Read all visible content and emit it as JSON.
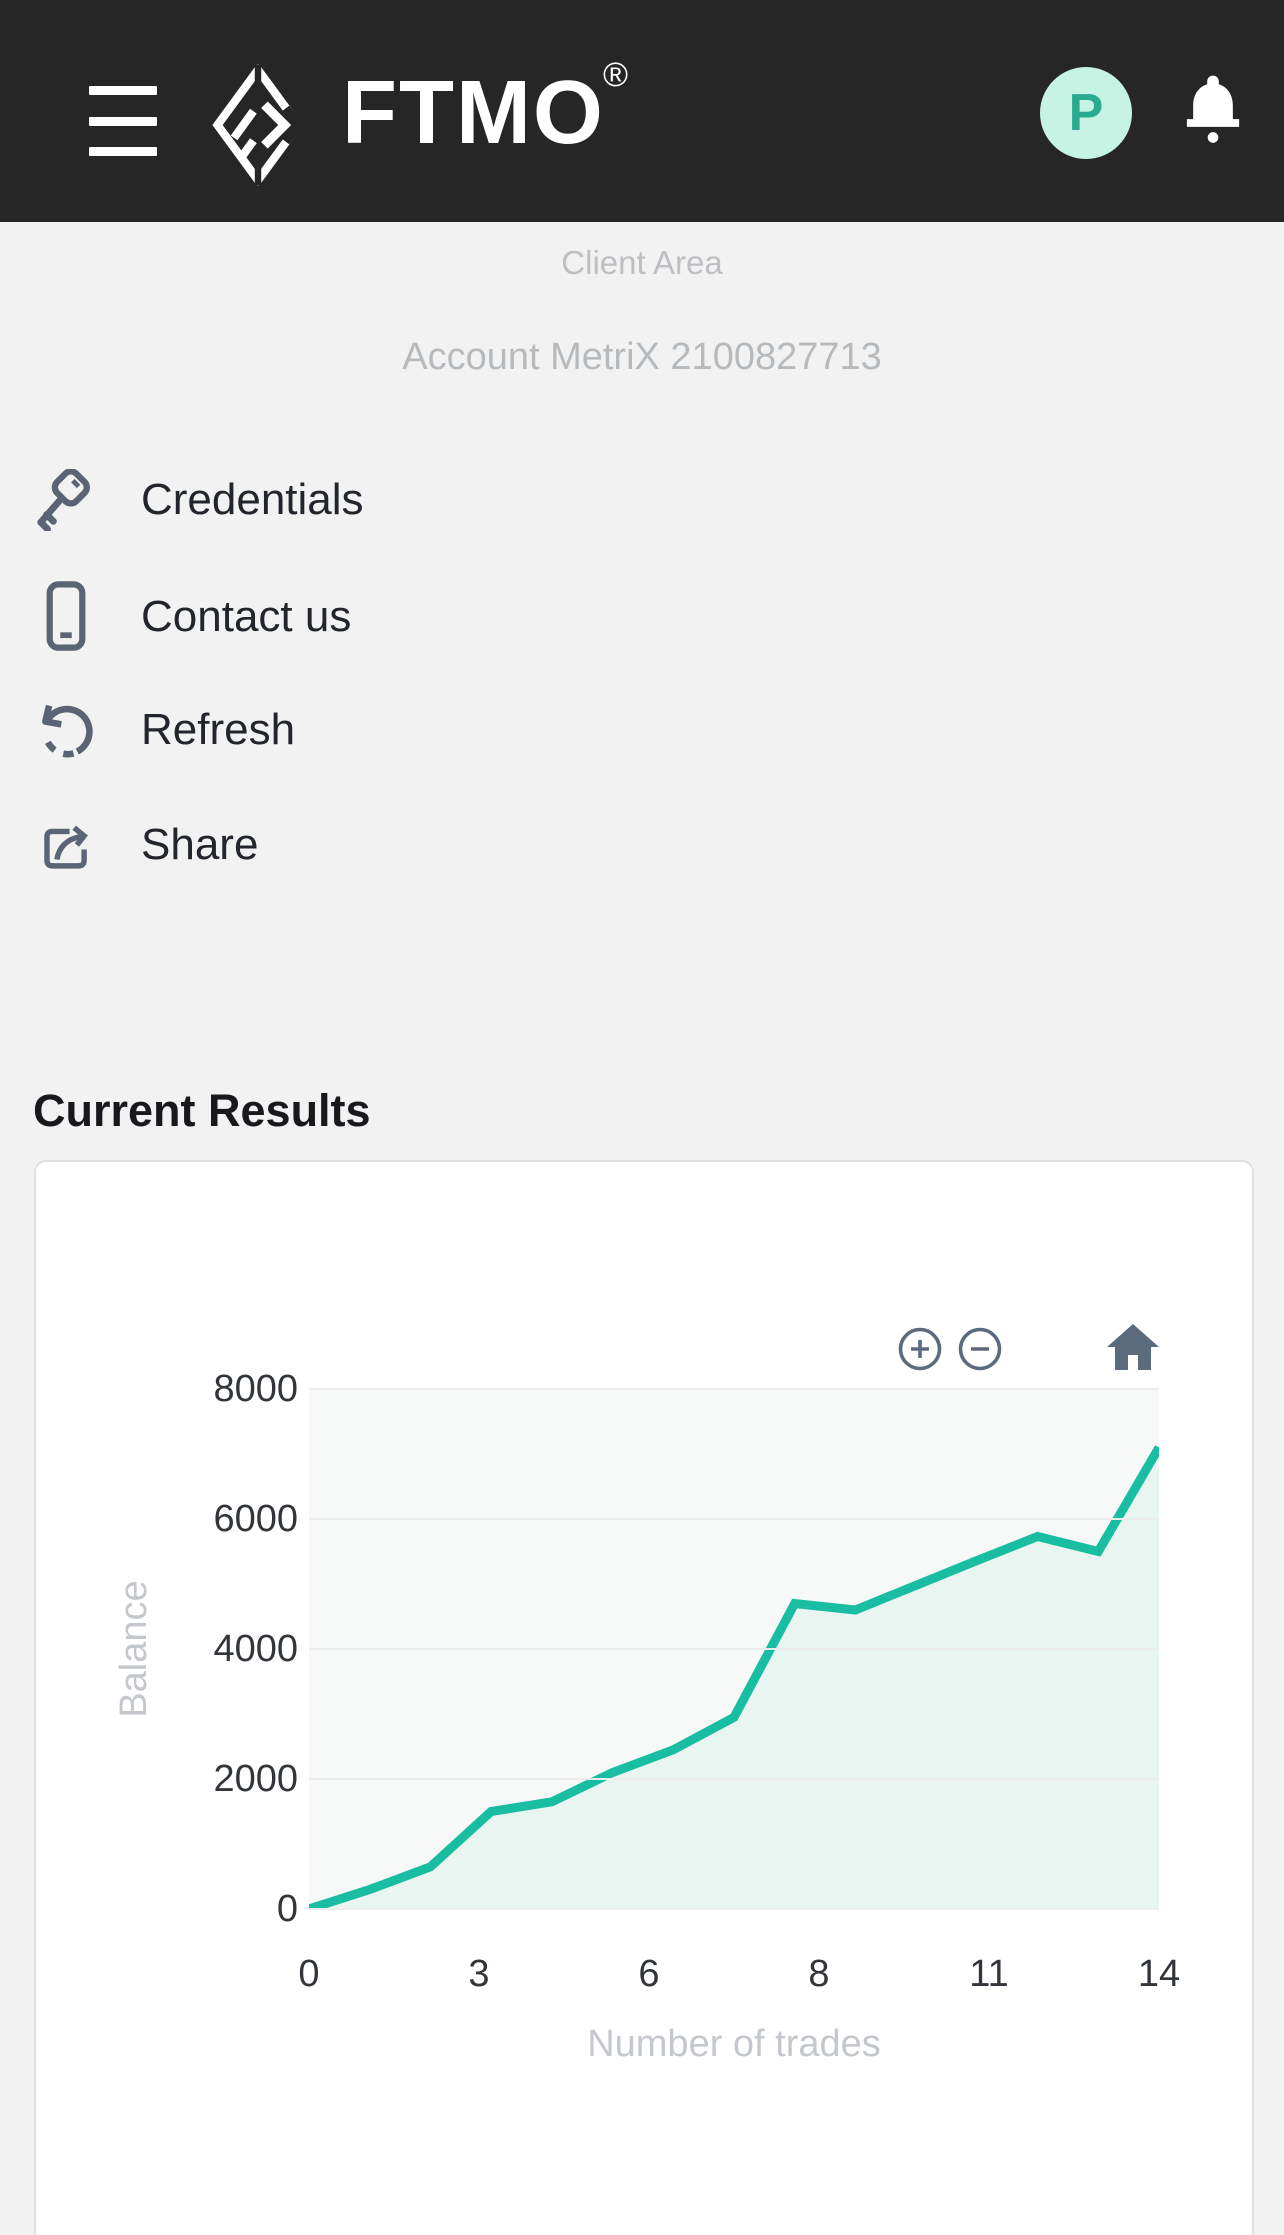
{
  "header": {
    "brand": "FTMO",
    "registered": "®",
    "avatar_initial": "P"
  },
  "breadcrumb": {
    "section": "Client Area",
    "page": "Account MetriX 2100827713"
  },
  "menu": {
    "items": [
      {
        "label": "Credentials",
        "icon": "key-icon"
      },
      {
        "label": "Contact us",
        "icon": "phone-icon"
      },
      {
        "label": "Refresh",
        "icon": "refresh-icon"
      },
      {
        "label": "Share",
        "icon": "share-icon"
      }
    ]
  },
  "section_title": "Current Results",
  "chart_toolbar": {
    "zoom_in": "plus-circle",
    "zoom_out": "minus-circle",
    "reset": "home"
  },
  "chart_data": {
    "type": "area",
    "title": "",
    "xlabel": "Number of trades",
    "ylabel": "Balance",
    "x": [
      0,
      1,
      2,
      3,
      4,
      5,
      6,
      7,
      8,
      9,
      10,
      11,
      12,
      13,
      14
    ],
    "series": [
      {
        "name": "Balance",
        "values": [
          0,
          300,
          650,
          1500,
          1650,
          2100,
          2450,
          2950,
          4700,
          4600,
          4980,
          5360,
          5730,
          5500,
          7100
        ]
      }
    ],
    "xlim": [
      0,
      14
    ],
    "ylim": [
      0,
      8000
    ],
    "xticks": {
      "positions": [
        0,
        2.8,
        5.6,
        8.4,
        11.2,
        14
      ],
      "labels": [
        "0",
        "3",
        "6",
        "8",
        "11",
        "14"
      ]
    },
    "yticks": {
      "positions": [
        0,
        2000,
        4000,
        6000,
        8000
      ],
      "labels": [
        "0",
        "2000",
        "4000",
        "6000",
        "8000"
      ]
    },
    "grid": true,
    "legend": "none",
    "line_color": "#18bda2",
    "fill_color": "#e8f5f1"
  },
  "colors": {
    "header_bg": "#262626",
    "page_bg": "#f2f2f2",
    "card_bg": "#ffffff",
    "accent_teal": "#18bda2",
    "chart_fill": "#e8f5f1",
    "plot_bg": "#f7f8f8",
    "gridline": "#ececec",
    "icon_slate": "#5a6474",
    "toolbar_icon": "#5b6b7d",
    "muted_text": "#b9bcbf",
    "dark_text": "#22262c",
    "avatar_bg": "#c7f3e5",
    "avatar_text": "#2aab91"
  }
}
